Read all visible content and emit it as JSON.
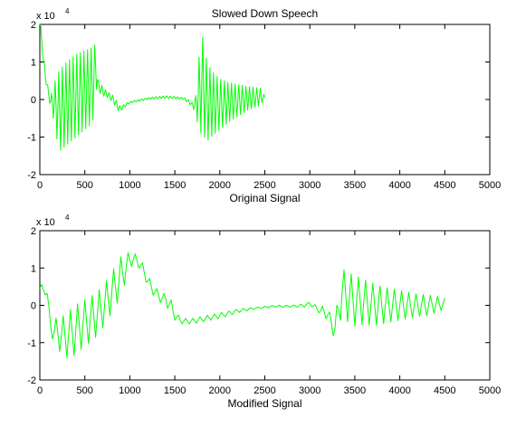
{
  "chart_data": [
    {
      "type": "line",
      "title": "Slowed Down Speech",
      "xlabel": "Original Signal",
      "ylabel": "",
      "xlim": [
        0,
        5000
      ],
      "ylim": [
        -2,
        2
      ],
      "y_multiplier_label": "x 10",
      "y_multiplier_exponent": "4",
      "x_ticks": [
        "0",
        "500",
        "1000",
        "1500",
        "2000",
        "2500",
        "3000",
        "3500",
        "4000",
        "4500",
        "5000"
      ],
      "y_ticks": [
        "-2",
        "-1",
        "0",
        "1",
        "2"
      ],
      "line_color": "#00ff00",
      "series": [
        {
          "x": [
            0,
            20,
            40,
            60,
            80,
            100,
            120,
            150,
            180,
            200,
            230,
            260,
            300,
            350,
            400,
            450,
            500,
            550,
            600,
            620,
            650,
            680,
            700,
            750,
            800,
            830,
            870,
            900,
            950,
            1000,
            1100,
            1200,
            1300,
            1400,
            1500,
            1600,
            1650,
            1700,
            1730,
            1760,
            1790,
            1800,
            1830,
            1860,
            1900,
            1950,
            2000,
            2100,
            2200,
            2300,
            2400,
            2450,
            2500
          ],
          "envelope_upper": [
            2.1,
            1.8,
            1.2,
            0.8,
            0.5,
            0.2,
            0.1,
            0.3,
            0.6,
            0.7,
            0.8,
            0.9,
            1.0,
            1.1,
            1.2,
            1.25,
            1.3,
            1.35,
            1.4,
            1.5,
            0.5,
            0.4,
            0.35,
            0.2,
            0.15,
            0.05,
            -0.1,
            -0.2,
            -0.1,
            -0.05,
            0.0,
            0.05,
            0.08,
            0.1,
            0.08,
            0.05,
            0.0,
            -0.1,
            0.1,
            0.9,
            1.6,
            1.85,
            1.3,
            1.0,
            0.8,
            0.65,
            0.55,
            0.45,
            0.4,
            0.35,
            0.32,
            0.3,
            0.1
          ],
          "envelope_lower": [
            1.9,
            1.5,
            0.9,
            0.5,
            0.3,
            0.0,
            -0.2,
            -0.5,
            -0.9,
            -1.2,
            -1.35,
            -1.3,
            -1.2,
            -1.1,
            -1.0,
            -0.9,
            -0.8,
            -0.7,
            -0.5,
            0.3,
            0.2,
            0.15,
            0.1,
            0.05,
            -0.05,
            -0.15,
            -0.3,
            -0.3,
            -0.2,
            -0.1,
            -0.05,
            0.0,
            0.02,
            0.04,
            0.02,
            0.0,
            -0.1,
            -0.2,
            -0.4,
            -0.7,
            -0.9,
            -0.8,
            -1.0,
            -1.1,
            -1.0,
            -0.9,
            -0.8,
            -0.6,
            -0.45,
            -0.3,
            -0.2,
            -0.15,
            0.0
          ],
          "oscillation_period": 40
        }
      ]
    },
    {
      "type": "line",
      "title": "",
      "xlabel": "Modified Signal",
      "ylabel": "",
      "xlim": [
        0,
        5000
      ],
      "ylim": [
        -2,
        2
      ],
      "y_multiplier_label": "x 10",
      "y_multiplier_exponent": "4",
      "x_ticks": [
        "0",
        "500",
        "1000",
        "1500",
        "2000",
        "2500",
        "3000",
        "3500",
        "4000",
        "4500",
        "5000"
      ],
      "y_ticks": [
        "-2",
        "-1",
        "0",
        "1",
        "2"
      ],
      "line_color": "#00ff00",
      "series": [
        {
          "x": [
            0,
            50,
            90,
            110,
            150,
            200,
            250,
            300,
            350,
            400,
            450,
            500,
            550,
            600,
            650,
            700,
            750,
            800,
            850,
            900,
            950,
            1000,
            1050,
            1100,
            1150,
            1200,
            1250,
            1300,
            1350,
            1400,
            1450,
            1500,
            1550,
            1600,
            1700,
            1800,
            2000,
            2200,
            2400,
            2600,
            2800,
            2950,
            3000,
            3050,
            3100,
            3150,
            3200,
            3250,
            3280,
            3320,
            3360,
            3400,
            3450,
            3500,
            3550,
            3600,
            3700,
            3800,
            3900,
            4000,
            4100,
            4200,
            4300,
            4400,
            4500
          ],
          "envelope_upper": [
            0.6,
            0.5,
            0.4,
            -0.4,
            -0.4,
            -0.3,
            -0.3,
            -0.2,
            -0.1,
            0.0,
            0.1,
            0.15,
            0.2,
            0.3,
            0.4,
            0.5,
            0.7,
            0.9,
            1.1,
            1.3,
            1.35,
            1.45,
            1.4,
            1.3,
            1.1,
            0.8,
            0.6,
            0.45,
            0.35,
            0.3,
            0.2,
            -0.1,
            -0.3,
            -0.35,
            -0.35,
            -0.3,
            -0.2,
            -0.1,
            -0.05,
            0.0,
            0.0,
            0.05,
            0.1,
            0.05,
            -0.1,
            0.0,
            -0.1,
            -0.3,
            -0.4,
            0.4,
            1.0,
            0.9,
            0.85,
            0.8,
            0.75,
            0.7,
            0.6,
            0.5,
            0.45,
            0.4,
            0.35,
            0.3,
            0.28,
            0.25,
            0.2
          ],
          "envelope_lower": [
            0.3,
            0.3,
            0.2,
            -0.6,
            -1.0,
            -1.2,
            -1.3,
            -1.4,
            -1.4,
            -1.3,
            -1.2,
            -1.1,
            -1.0,
            -0.9,
            -0.8,
            -0.6,
            -0.4,
            -0.2,
            0.0,
            0.3,
            0.6,
            1.0,
            1.1,
            1.0,
            0.8,
            0.5,
            0.3,
            0.15,
            0.05,
            0.0,
            -0.2,
            -0.4,
            -0.5,
            -0.5,
            -0.5,
            -0.45,
            -0.35,
            -0.2,
            -0.1,
            -0.05,
            -0.05,
            -0.05,
            0.0,
            -0.1,
            -0.2,
            -0.3,
            -0.4,
            -0.8,
            -0.85,
            -0.6,
            -0.2,
            -0.4,
            -0.5,
            -0.55,
            -0.55,
            -0.5,
            -0.55,
            -0.5,
            -0.45,
            -0.4,
            -0.35,
            -0.3,
            -0.28,
            -0.2,
            -0.1
          ],
          "oscillation_period": 80
        }
      ]
    }
  ]
}
